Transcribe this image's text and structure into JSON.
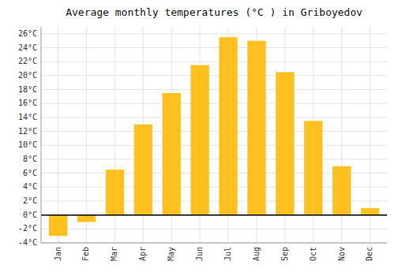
{
  "chart_data": {
    "type": "bar",
    "title": "Average monthly temperatures (°C ) in Griboyedov",
    "categories": [
      "Jan",
      "Feb",
      "Mar",
      "Apr",
      "May",
      "Jun",
      "Jul",
      "Aug",
      "Sep",
      "Oct",
      "Nov",
      "Dec"
    ],
    "values": [
      -3,
      -1,
      6.5,
      13,
      17.5,
      21.5,
      25.5,
      25,
      20.5,
      13.5,
      7,
      1
    ],
    "color": "#FFC020",
    "ylim": [
      -4,
      27
    ],
    "yticks": [
      {
        "value": -4,
        "label": "-4°C"
      },
      {
        "value": -2,
        "label": "-2°C"
      },
      {
        "value": 0,
        "label": "0°C"
      },
      {
        "value": 2,
        "label": "2°C"
      },
      {
        "value": 4,
        "label": "4°C"
      },
      {
        "value": 6,
        "label": "6°C"
      },
      {
        "value": 8,
        "label": "8°C"
      },
      {
        "value": 10,
        "label": "10°C"
      },
      {
        "value": 12,
        "label": "12°C"
      },
      {
        "value": 14,
        "label": "14°C"
      },
      {
        "value": 16,
        "label": "16°C"
      },
      {
        "value": 18,
        "label": "18°C"
      },
      {
        "value": 20,
        "label": "20°C"
      },
      {
        "value": 22,
        "label": "22°C"
      },
      {
        "value": 24,
        "label": "24°C"
      },
      {
        "value": 26,
        "label": "26°C"
      }
    ],
    "grid": true
  }
}
